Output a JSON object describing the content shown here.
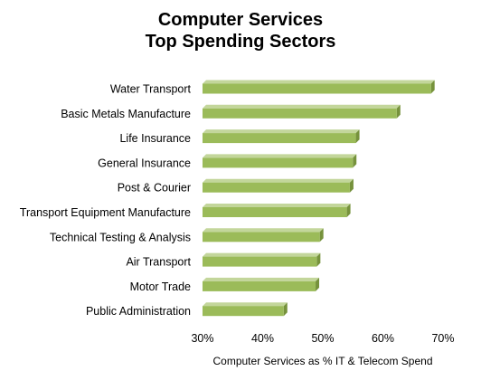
{
  "chart_data": {
    "type": "bar",
    "orientation": "horizontal",
    "title_lines": [
      "Computer Services",
      "Top Spending Sectors"
    ],
    "xlabel": "Computer Services as % IT & Telecom Spend",
    "ylabel": "",
    "xlim": [
      30,
      70
    ],
    "xticks": [
      "30%",
      "40%",
      "50%",
      "60%",
      "70%"
    ],
    "xtick_values": [
      30,
      40,
      50,
      60,
      70
    ],
    "grid": false,
    "legend": "none",
    "categories": [
      "Water Transport",
      "Basic Metals Manufacture",
      "Life Insurance",
      "General Insurance",
      "Post & Courier",
      "Transport Equipment Manufacture",
      "Technical Testing & Analysis",
      "Air Transport",
      "Motor Trade",
      "Public Administration"
    ],
    "values": [
      68.0,
      62.3,
      55.5,
      55.0,
      54.5,
      54.0,
      49.5,
      49.0,
      48.8,
      43.5
    ],
    "colors": {
      "bar_face": "#9bbb59",
      "bar_top": "#c3d69b",
      "bar_side": "#76923c",
      "axis": "#808080"
    }
  }
}
